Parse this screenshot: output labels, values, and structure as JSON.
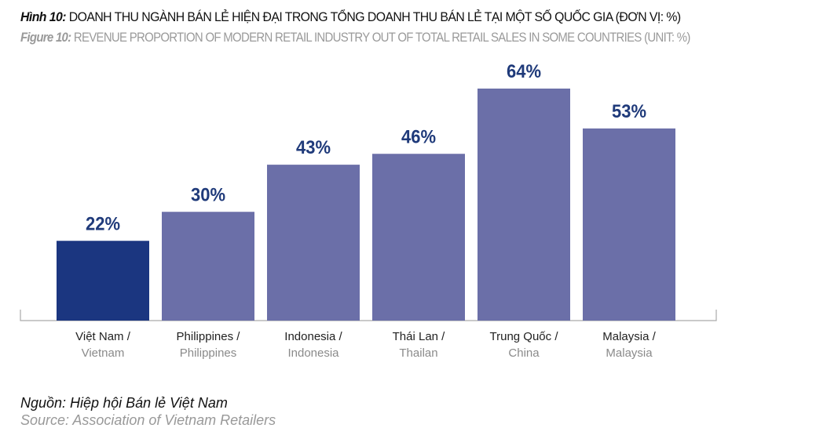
{
  "header": {
    "title_vi_prefix": "Hình 10:",
    "title_vi": " DOANH THU NGÀNH BÁN LẺ HIỆN ĐẠI TRONG TỔNG DOANH THU BÁN LẺ TẠI MỘT SỐ QUỐC GIA (ĐƠN VỊ: %)",
    "title_en_prefix": "Figure 10:",
    "title_en": " REVENUE PROPORTION OF MODERN RETAIL INDUSTRY OUT OF TOTAL RETAIL SALES IN SOME COUNTRIES (UNIT: %)"
  },
  "source": {
    "vi": "Nguồn: Hiệp hội Bán lẻ Việt Nam",
    "en": "Source: Association of Vietnam Retailers"
  },
  "chart_data": {
    "type": "bar",
    "categories": [
      {
        "vi": "Việt Nam /",
        "en": "Vietnam"
      },
      {
        "vi": "Philippines /",
        "en": "Philippines"
      },
      {
        "vi": "Indonesia /",
        "en": "Indonesia"
      },
      {
        "vi": "Thái Lan /",
        "en": "Thailan"
      },
      {
        "vi": "Trung Quốc /",
        "en": "China"
      },
      {
        "vi": "Malaysia /",
        "en": "Malaysia"
      }
    ],
    "values": [
      22,
      30,
      43,
      46,
      64,
      53
    ],
    "data_labels": [
      "22%",
      "30%",
      "43%",
      "46%",
      "64%",
      "53%"
    ],
    "ylim": [
      0,
      64
    ],
    "grid": false,
    "colors": {
      "highlight": "#1b3680",
      "default": "#6b6fa8",
      "label": "#1f3a7a"
    }
  }
}
